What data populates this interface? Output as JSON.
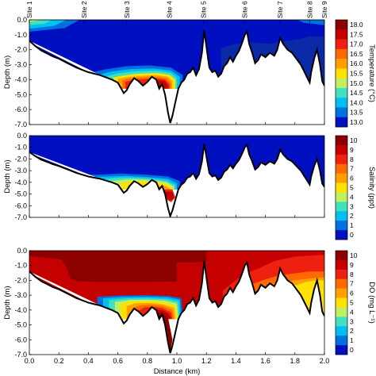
{
  "chart_data": [
    {
      "type": "heatmap",
      "panel": "temperature",
      "ylabel": "Depth (m)",
      "xlabel": "",
      "ylim": [
        -7.0,
        0.0
      ],
      "xlim": [
        0.0,
        2.0
      ],
      "yticks": [
        "0.0",
        "-1.0",
        "-2.0",
        "-3.0",
        "-4.0",
        "-5.0",
        "-6.0",
        "-7.0"
      ],
      "xticks": [
        "0.0",
        "0.2",
        "0.4",
        "0.6",
        "0.8",
        "1.0",
        "1.2",
        "1.4",
        "1.6",
        "1.8",
        "2.0"
      ],
      "sites": [
        "Site 1",
        "Site 2",
        "Site 3",
        "Site 4",
        "Site 5",
        "Site 6",
        "Site 7",
        "Site 8",
        "Site 9"
      ],
      "site_x": [
        0.0,
        0.37,
        0.66,
        0.95,
        1.18,
        1.46,
        1.7,
        1.9,
        2.0
      ],
      "colorbar": {
        "label": "Temperature (°C)",
        "tick_labels": [
          "18.0",
          "17.5",
          "17.0",
          "16.5",
          "16.0",
          "15.5",
          "15.0",
          "14.5",
          "14.0",
          "13.5",
          "13.0"
        ],
        "colors": [
          "#8c0000",
          "#c40000",
          "#ee2010",
          "#ff6a00",
          "#ffa000",
          "#ffe000",
          "#c0f060",
          "#40e0c0",
          "#00c0f0",
          "#0070e0",
          "#0010c0"
        ]
      }
    },
    {
      "type": "heatmap",
      "panel": "salinity",
      "ylabel": "Depth (m)",
      "xlabel": "",
      "ylim": [
        -7.0,
        0.0
      ],
      "xlim": [
        0.0,
        2.0
      ],
      "yticks": [
        "0.0",
        "-1.0",
        "-2.0",
        "-3.0",
        "-4.0",
        "-5.0",
        "-6.0",
        "-7.0"
      ],
      "xticks": [
        "0.0",
        "0.2",
        "0.4",
        "0.6",
        "0.8",
        "1.0",
        "1.2",
        "1.4",
        "1.6",
        "1.8",
        "2.0"
      ],
      "colorbar": {
        "label": "Salinity (ppt)",
        "tick_labels": [
          "10",
          "9",
          "8",
          "7",
          "6",
          "5",
          "4",
          "3",
          "2",
          "1",
          "0"
        ],
        "colors": [
          "#8c0000",
          "#c40000",
          "#ee2010",
          "#ff6a00",
          "#ffa000",
          "#ffe000",
          "#c0f060",
          "#40e0c0",
          "#00c0f0",
          "#0070e0",
          "#0010c0"
        ]
      }
    },
    {
      "type": "heatmap",
      "panel": "dissolved_oxygen",
      "ylabel": "Depth (m)",
      "xlabel": "Distance (km)",
      "ylim": [
        -7.0,
        0.0
      ],
      "xlim": [
        0.0,
        2.0
      ],
      "yticks": [
        "0.0",
        "-1.0",
        "-2.0",
        "-3.0",
        "-4.0",
        "-5.0",
        "-6.0",
        "-7.0"
      ],
      "xticks": [
        "0.0",
        "0.2",
        "0.4",
        "0.6",
        "0.8",
        "1.0",
        "1.2",
        "1.4",
        "1.6",
        "1.8",
        "2.0"
      ],
      "colorbar": {
        "label": "DO (mg L⁻¹)",
        "tick_labels": [
          "10",
          "9",
          "8",
          "7",
          "6",
          "5",
          "4",
          "3",
          "2",
          "1",
          "0"
        ],
        "colors": [
          "#8c0000",
          "#c40000",
          "#ee2010",
          "#ff6a00",
          "#ffa000",
          "#ffe000",
          "#c0f060",
          "#40e0c0",
          "#00c0f0",
          "#0070e0",
          "#0010c0"
        ]
      }
    }
  ]
}
